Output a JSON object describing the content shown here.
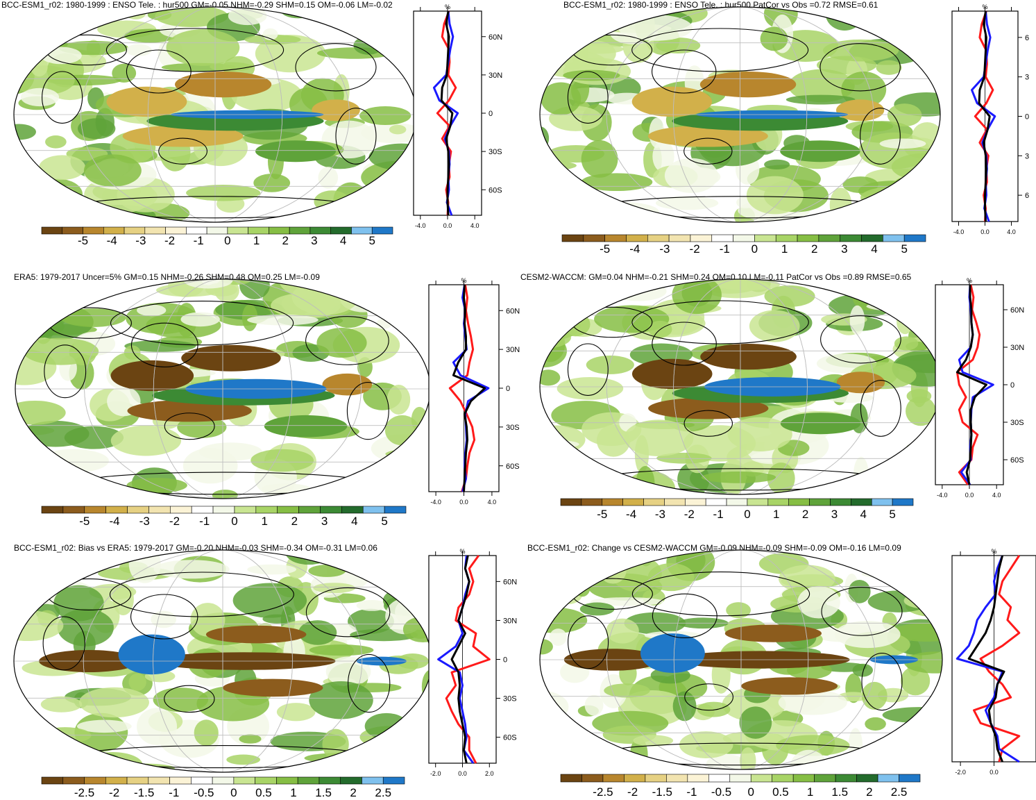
{
  "palette": [
    "#6b4412",
    "#8c5c1d",
    "#b8862d",
    "#d2b04a",
    "#e6d183",
    "#f2e4b0",
    "#fbf3d6",
    "#ffffff",
    "#f3f8e8",
    "#c9e592",
    "#a8d466",
    "#86be44",
    "#5fa33a",
    "#3c8a34",
    "#236b2c",
    "#7fc1ee",
    "#1f78c8"
  ],
  "line_colors": {
    "model": "#ff1a1a",
    "obs": "#1a1aff",
    "ref": "#000000"
  },
  "panels": [
    {
      "title": "BCC-ESM1_r02: 1980-1999 : ENSO Tele. : hur500 GM=-0.05 NHM=-0.29 SHM=0.15 OM=-0.06 LM=-0.02",
      "colorbar_labels": [
        "-5",
        "-4",
        "-3",
        "-2",
        "-1",
        "0",
        "1",
        "2",
        "3",
        "4",
        "5"
      ],
      "profile": {
        "unit": "%",
        "lat_labels": [
          "60N",
          "30N",
          "0",
          "30S",
          "60S"
        ],
        "x_labels": [
          "-4.0",
          "0.0",
          "4.0"
        ],
        "xlim": [
          -5,
          5
        ]
      }
    },
    {
      "title": "BCC-ESM1_r02: 1980-1999 : ENSO Tele. : hur500 PatCor vs Obs =0.72 RMSE=0.61",
      "colorbar_labels": [
        "-5",
        "-4",
        "-3",
        "-2",
        "-1",
        "0",
        "1",
        "2",
        "3",
        "4",
        "5"
      ],
      "profile": {
        "unit": "%",
        "lat_labels": [
          "6",
          "3",
          "0",
          "3",
          "6"
        ],
        "x_labels": [
          "-4.0",
          "0.0",
          "4.0"
        ],
        "xlim": [
          -5,
          5
        ]
      }
    },
    {
      "title": "ERA5: 1979-2017 Uncer=5% GM=0.15 NHM=-0.26 SHM=0.48 OM=0.25 LM=-0.09",
      "colorbar_labels": [
        "-5",
        "-4",
        "-3",
        "-2",
        "-1",
        "0",
        "1",
        "2",
        "3",
        "4",
        "5"
      ],
      "profile": {
        "unit": "%",
        "lat_labels": [
          "60N",
          "30N",
          "0",
          "30S",
          "60S"
        ],
        "x_labels": [
          "-4.0",
          "0.0",
          "4.0"
        ],
        "xlim": [
          -5,
          5
        ]
      }
    },
    {
      "title": "CESM2-WACCM: GM=0.04 NHM=-0.21 SHM=0.24 OM=0.10 LM=-0.11 PatCor vs Obs =0.89 RMSE=0.65",
      "colorbar_labels": [
        "-5",
        "-4",
        "-3",
        "-2",
        "-1",
        "0",
        "1",
        "2",
        "3",
        "4",
        "5"
      ],
      "profile": {
        "unit": "%",
        "lat_labels": [
          "60N",
          "30N",
          "0",
          "30S",
          "60S"
        ],
        "x_labels": [
          "-4.0",
          "0.0",
          "4.0"
        ],
        "xlim": [
          -5,
          5
        ]
      }
    },
    {
      "title": "BCC-ESM1_r02: Bias vs ERA5: 1979-2017 GM=-0.20 NHM=-0.03 SHM=-0.34 OM=-0.31 LM=0.06",
      "colorbar_labels": [
        "-2.5",
        "-2",
        "-1.5",
        "-1",
        "-0.5",
        "0",
        "0.5",
        "1",
        "1.5",
        "2",
        "2.5"
      ],
      "profile": {
        "unit": "%",
        "lat_labels": [
          "60N",
          "30N",
          "0",
          "30S",
          "60S"
        ],
        "x_labels": [
          "-2.0",
          "0.0",
          "2.0"
        ],
        "xlim": [
          -2.5,
          2.5
        ]
      }
    },
    {
      "title": "BCC-ESM1_r02: Change vs CESM2-WACCM GM=-0.09 NHM=-0.09 SHM=-0.09 OM=-0.16 LM=0.09",
      "colorbar_labels": [
        "-2.5",
        "-2",
        "-1.5",
        "-1",
        "-0.5",
        "0",
        "0.5",
        "1",
        "1.5",
        "2",
        "2.5"
      ],
      "profile": {
        "unit": "%",
        "lat_labels": [
          "60N",
          "30N",
          "0",
          "30S",
          "60S"
        ],
        "x_labels": [
          "-2.0",
          "0.0"
        ],
        "xlim": [
          -2.5,
          2.5
        ]
      }
    }
  ],
  "chart_data": {
    "type": "heatmap",
    "variable": "hur500",
    "units": "%",
    "contour_levels_rows_1_2": [
      -5,
      -4,
      -3,
      -2,
      -1,
      0,
      1,
      2,
      3,
      4,
      5
    ],
    "contour_levels_row_3": [
      -2.5,
      -2,
      -1.5,
      -1,
      -0.5,
      0,
      0.5,
      1,
      1.5,
      2,
      2.5
    ],
    "panels": [
      {
        "title": "BCC-ESM1_r02: 1980-1999 : ENSO Tele. : hur500 GM=-0.05 NHM=-0.29 SHM=0.15 OM=-0.06 LM=-0.02",
        "GM": -0.05,
        "NHM": -0.29,
        "SHM": 0.15,
        "OM": -0.06,
        "LM": -0.02
      },
      {
        "title": "BCC-ESM1_r02: 1980-1999 : ENSO Tele. : hur500 PatCor vs Obs =0.72 RMSE=0.61",
        "PatCor": 0.72,
        "RMSE": 0.61
      },
      {
        "title": "ERA5: 1979-2017 Uncer=5% GM=0.15 NHM=-0.26 SHM=0.48 OM=0.25 LM=-0.09",
        "Uncer": "5%",
        "GM": 0.15,
        "NHM": -0.26,
        "SHM": 0.48,
        "OM": 0.25,
        "LM": -0.09
      },
      {
        "title": "CESM2-WACCM: GM=0.04 NHM=-0.21 SHM=0.24 OM=0.10 LM=-0.11 PatCor vs Obs =0.89 RMSE=0.65",
        "GM": 0.04,
        "NHM": -0.21,
        "SHM": 0.24,
        "OM": 0.1,
        "LM": -0.11,
        "PatCor": 0.89,
        "RMSE": 0.65
      },
      {
        "title": "BCC-ESM1_r02: Bias vs ERA5: 1979-2017 GM=-0.20 NHM=-0.03 SHM=-0.34 OM=-0.31 LM=0.06",
        "GM": -0.2,
        "NHM": -0.03,
        "SHM": -0.34,
        "OM": -0.31,
        "LM": 0.06
      },
      {
        "title": "BCC-ESM1_r02: Change vs CESM2-WACCM GM=-0.09 NHM=-0.09 SHM=-0.09 OM=-0.16 LM=0.09",
        "GM": -0.09,
        "NHM": -0.09,
        "SHM": -0.09,
        "OM": -0.16,
        "LM": 0.09
      }
    ],
    "zonal_profiles": [
      {
        "lat": [
          80,
          70,
          60,
          50,
          40,
          30,
          20,
          10,
          0,
          -10,
          -20,
          -30,
          -40,
          -50,
          -60,
          -70,
          -80
        ],
        "red": [
          0.2,
          -0.5,
          -0.8,
          0.2,
          0.3,
          0.1,
          1.2,
          0.2,
          -1.5,
          0.3,
          -0.8,
          0.5,
          0.2,
          0.3,
          -0.2,
          0.1,
          0.0
        ],
        "blue": [
          0.1,
          0.3,
          0.8,
          0.4,
          0.1,
          -0.2,
          -2.0,
          -1.2,
          1.5,
          0.4,
          -0.4,
          0.2,
          0.3,
          0.1,
          0.2,
          -0.1,
          0.6
        ],
        "black": [
          0.1,
          -0.2,
          0.2,
          0.1,
          0.0,
          -0.1,
          -0.8,
          -0.9,
          0.7,
          0.4,
          -0.2,
          0.1,
          0.2,
          0.1,
          0.0,
          0.0,
          0.1
        ]
      },
      {
        "lat": [
          80,
          70,
          60,
          50,
          40,
          30,
          20,
          10,
          0,
          -10,
          -20,
          -30,
          -40,
          -50,
          -60,
          -70,
          -80
        ],
        "red": [
          0.2,
          -0.5,
          -0.8,
          0.2,
          0.3,
          0.1,
          1.2,
          0.2,
          -1.5,
          0.3,
          -0.8,
          0.5,
          0.2,
          0.3,
          -0.2,
          0.1,
          0.0
        ],
        "blue": [
          0.1,
          0.3,
          0.8,
          0.4,
          0.1,
          -0.2,
          -2.0,
          -1.2,
          1.5,
          0.4,
          -0.4,
          0.2,
          0.3,
          0.1,
          0.2,
          -0.1,
          0.6
        ],
        "black": [
          0.1,
          -0.2,
          0.2,
          0.1,
          0.0,
          -0.1,
          -0.8,
          -0.9,
          0.7,
          0.4,
          -0.2,
          0.1,
          0.2,
          0.1,
          0.0,
          0.0,
          0.1
        ]
      },
      {
        "lat": [
          80,
          70,
          60,
          50,
          40,
          30,
          20,
          10,
          0,
          -10,
          -20,
          -30,
          -40,
          -50,
          -60,
          -70,
          -80
        ],
        "red": [
          0.2,
          0.5,
          0.3,
          0.6,
          1.0,
          1.3,
          0.8,
          0.5,
          -2.0,
          -0.5,
          0.4,
          1.2,
          1.5,
          0.8,
          0.5,
          0.3,
          -0.3
        ],
        "blue": [
          0.1,
          -0.2,
          0.2,
          0.0,
          0.2,
          0.4,
          -1.5,
          -0.5,
          3.5,
          0.6,
          0.2,
          0.3,
          0.4,
          0.2,
          0.1,
          0.3,
          -0.2
        ],
        "black": [
          0.1,
          0.0,
          0.2,
          0.1,
          0.3,
          0.3,
          -0.8,
          -1.5,
          3.0,
          1.0,
          0.1,
          0.4,
          0.5,
          0.3,
          0.2,
          0.1,
          0.0
        ]
      },
      {
        "lat": [
          80,
          70,
          60,
          50,
          40,
          30,
          20,
          10,
          0,
          -10,
          -20,
          -30,
          -40,
          -50,
          -60,
          -70,
          -80
        ],
        "red": [
          0.2,
          0.6,
          0.4,
          1.0,
          1.5,
          1.2,
          0.5,
          -1.8,
          -1.5,
          -0.5,
          -1.5,
          -1.0,
          1.2,
          0.5,
          0.3,
          -1.5,
          -0.2
        ],
        "blue": [
          0.1,
          0.0,
          0.2,
          0.3,
          0.5,
          0.2,
          -1.5,
          -1.0,
          3.5,
          0.5,
          0.3,
          0.2,
          0.3,
          0.1,
          0.2,
          -1.2,
          0.1
        ],
        "black": [
          0.1,
          0.1,
          0.3,
          0.3,
          0.5,
          0.2,
          -0.5,
          -1.8,
          2.5,
          0.8,
          0.2,
          0.2,
          0.3,
          0.2,
          0.1,
          -0.4,
          0.0
        ]
      },
      {
        "lat": [
          80,
          70,
          60,
          50,
          40,
          30,
          20,
          10,
          0,
          -10,
          -20,
          -30,
          -40,
          -50,
          -60,
          -70,
          -80
        ],
        "red": [
          1.2,
          0.5,
          0.8,
          0.5,
          -0.3,
          -0.5,
          1.0,
          0.8,
          2.0,
          -0.8,
          -0.5,
          -1.2,
          -0.8,
          -0.3,
          0.5,
          0.5,
          1.0
        ],
        "blue": [
          0.3,
          0.2,
          0.5,
          0.2,
          0.0,
          -0.3,
          0.0,
          -0.5,
          -1.8,
          -0.2,
          0.0,
          -0.2,
          0.0,
          0.2,
          0.3,
          0.1,
          0.8
        ],
        "black": [
          0.4,
          0.2,
          0.5,
          0.3,
          0.0,
          -0.3,
          0.2,
          -0.3,
          -0.8,
          -0.3,
          -0.2,
          -0.3,
          -0.2,
          0.0,
          0.2,
          0.1,
          0.3
        ]
      },
      {
        "lat": [
          80,
          70,
          60,
          50,
          40,
          30,
          20,
          10,
          0,
          -10,
          -20,
          -30,
          -40,
          -50,
          -60,
          -70,
          -80
        ],
        "red": [
          1.5,
          1.0,
          0.5,
          0.3,
          1.0,
          0.8,
          1.5,
          0.5,
          -0.8,
          -0.3,
          0.5,
          1.0,
          -1.2,
          -0.8,
          1.5,
          0.5,
          0.3
        ],
        "blue": [
          0.5,
          0.2,
          0.0,
          0.1,
          -0.5,
          -1.0,
          -1.2,
          -1.5,
          -2.2,
          0.5,
          0.2,
          0.0,
          -0.5,
          -0.2,
          0.2,
          0.3,
          1.5
        ],
        "black": [
          0.5,
          0.3,
          0.2,
          0.1,
          0.0,
          -0.2,
          -0.5,
          -1.0,
          -1.5,
          0.6,
          0.2,
          0.1,
          -0.3,
          -0.2,
          0.1,
          0.2,
          0.5
        ]
      }
    ]
  }
}
